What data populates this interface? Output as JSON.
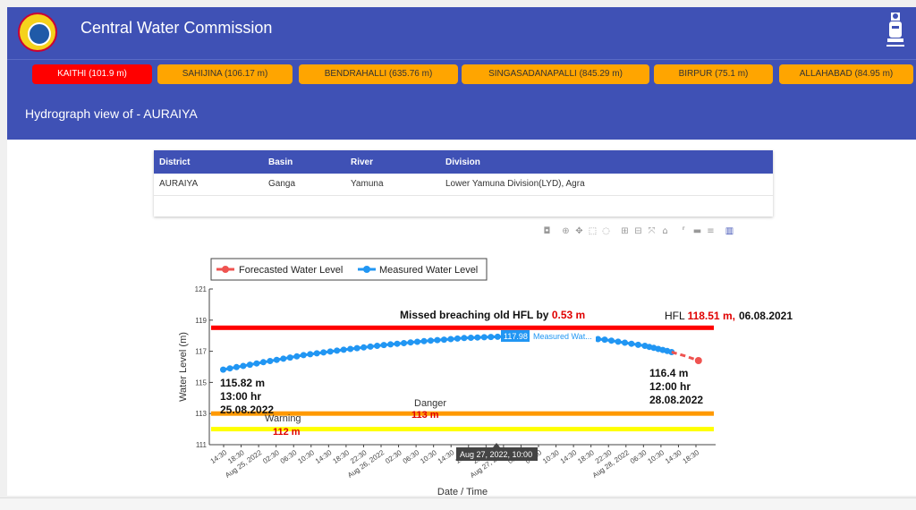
{
  "header": {
    "title": "Central Water Commission",
    "logo_icon": "cwc-logo-icon",
    "emblem_icon": "national-emblem-icon"
  },
  "stations": [
    {
      "label": "KAITHI (101.9 m)",
      "active": true
    },
    {
      "label": "SAHIJINA (106.17 m)",
      "active": false
    },
    {
      "label": "BENDRAHALLI (635.76 m)",
      "active": false
    },
    {
      "label": "SINGASADANAPALLI (845.29 m)",
      "active": false
    },
    {
      "label": "BIRPUR (75.1 m)",
      "active": false
    },
    {
      "label": "ALLAHABAD (84.95 m)",
      "active": false
    }
  ],
  "sub_header": {
    "title": "Hydrograph view of - AURAIYA"
  },
  "info_table": {
    "headers": [
      "District",
      "Basin",
      "River",
      "Division"
    ],
    "row": [
      "AURAIYA",
      "Ganga",
      "Yamuna",
      "Lower Yamuna Division(LYD), Agra"
    ]
  },
  "colors": {
    "primary": "#3f51b5",
    "active_station": "#ff0000",
    "station": "#ffa500",
    "hfl": "#ff0000",
    "danger": "#ff9900",
    "warning": "#ffff00",
    "measured": "#2196f3",
    "forecast": "#ef5350"
  },
  "modebar_icons": [
    "camera-icon",
    "zoom-icon",
    "pan-icon",
    "box-select-icon",
    "lasso-icon",
    "zoom-in-icon",
    "zoom-out-icon",
    "autoscale-icon",
    "home-icon",
    "spike-lines-icon",
    "hover-closest-icon",
    "hover-compare-icon",
    "plotly-logo-icon"
  ],
  "chart_data": {
    "type": "line",
    "xlabel": "Date / Time",
    "ylabel": "Water Level (m)",
    "ylim": [
      111,
      121
    ],
    "yticks": [
      111,
      113,
      115,
      117,
      119,
      121
    ],
    "xtick_labels": [
      "14:30",
      "18:30",
      "Aug 25, 2022",
      "02:30",
      "06:30",
      "10:30",
      "14:30",
      "18:30",
      "22:30",
      "Aug 26, 2022",
      "02:30",
      "06:30",
      "10:30",
      "14:30",
      "18:30",
      "22:30",
      "Aug 27, 2022",
      "02:30",
      "06:30",
      "10:30",
      "14:30",
      "18:30",
      "22:30",
      "Aug 28, 2022",
      "06:30",
      "10:30",
      "14:30",
      "18:30"
    ],
    "legend": [
      "Forecasted Water Level",
      "Measured Water Level"
    ],
    "legend_position": "top-left",
    "series": [
      {
        "name": "Measured Water Level",
        "x": [
          "2022-08-25 13:00",
          "2022-08-25 19:00",
          "2022-08-26 01:00",
          "2022-08-26 07:00",
          "2022-08-26 13:00",
          "2022-08-26 19:00",
          "2022-08-27 01:00",
          "2022-08-27 07:00",
          "2022-08-27 10:00",
          "2022-08-27 16:00",
          "2022-08-27 22:00",
          "2022-08-28 04:00",
          "2022-08-28 08:00"
        ],
        "values": [
          115.82,
          116.3,
          116.75,
          117.1,
          117.4,
          117.65,
          117.85,
          117.95,
          117.98,
          117.95,
          117.75,
          117.35,
          116.95
        ]
      },
      {
        "name": "Forecasted Water Level",
        "x": [
          "2022-08-28 08:00",
          "2022-08-28 10:00",
          "2022-08-28 12:00"
        ],
        "values": [
          116.95,
          116.7,
          116.4
        ]
      }
    ],
    "reference_lines": [
      {
        "label": "HFL",
        "value": 118.51
      },
      {
        "label": "Danger",
        "value": 113
      },
      {
        "label": "Warning",
        "value": 112
      }
    ],
    "annotations": {
      "breach_prefix": "Missed breaching old HFL by ",
      "breach_value": "0.53 m",
      "hfl_prefix": "HFL ",
      "hfl_value": "118.51 m,",
      "hfl_date": "06.08.2021",
      "start_value": "115.82 m",
      "start_time": "13:00 hr",
      "start_date": "25.08.2022",
      "end_value": "116.4 m",
      "end_time": "12:00 hr",
      "end_date": "28.08.2022",
      "danger_label": "Danger",
      "danger_value": "113 m",
      "warning_label": "Warning",
      "warning_value": "112 m",
      "hover_value": "117.98",
      "hover_series": "Measured Wat...",
      "hover_x": "Aug 27, 2022, 10:00"
    }
  }
}
